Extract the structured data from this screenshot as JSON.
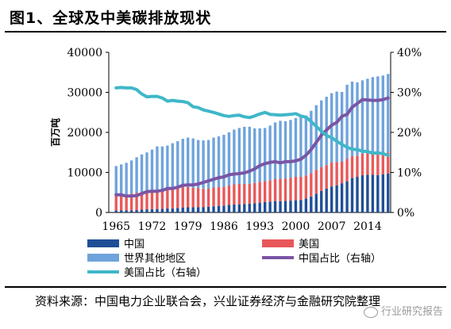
{
  "header": {
    "title": "图1、全球及中美碳排放现状"
  },
  "source": {
    "text": "资料来源：中国电力企业联合会，兴业证券经济与金融研究院整理"
  },
  "watermark": {
    "text": "行业研究报告",
    "icon": "wechat-logo-icon"
  },
  "colors": {
    "china": "#1f4e96",
    "usa": "#e8585a",
    "row": "#6fa3dc",
    "china_share": "#7a55a5",
    "us_share": "#3fb7c9"
  },
  "chart_data": {
    "type": "bar",
    "stacked": true,
    "ylabel": "百万吨",
    "ylim": [
      0,
      40000
    ],
    "y2lim": [
      0,
      0.4
    ],
    "yticks": [
      "0",
      "10000",
      "20000",
      "30000",
      "40000"
    ],
    "y2ticks": [
      "0%",
      "10%",
      "20%",
      "30%",
      "40%"
    ],
    "xticks": [
      "1965",
      "1972",
      "1979",
      "1986",
      "1993",
      "2000",
      "2007",
      "2014"
    ],
    "x": [
      1965,
      1966,
      1967,
      1968,
      1969,
      1970,
      1971,
      1972,
      1973,
      1974,
      1975,
      1976,
      1977,
      1978,
      1979,
      1980,
      1981,
      1982,
      1983,
      1984,
      1985,
      1986,
      1987,
      1988,
      1989,
      1990,
      1991,
      1992,
      1993,
      1994,
      1995,
      1996,
      1997,
      1998,
      1999,
      2000,
      2001,
      2002,
      2003,
      2004,
      2005,
      2006,
      2007,
      2008,
      2009,
      2010,
      2011,
      2012,
      2013,
      2014,
      2015,
      2016,
      2017,
      2018
    ],
    "legend_placement": "bottom",
    "series": [
      {
        "name": "中国",
        "kind": "bar",
        "values": [
          520,
          550,
          510,
          530,
          580,
          690,
          780,
          830,
          870,
          900,
          1000,
          1030,
          1120,
          1260,
          1290,
          1280,
          1290,
          1360,
          1430,
          1560,
          1650,
          1730,
          1880,
          1990,
          2040,
          2100,
          2200,
          2300,
          2450,
          2580,
          2700,
          2850,
          2830,
          2900,
          2950,
          3050,
          3150,
          3450,
          4000,
          4700,
          5400,
          5950,
          6500,
          6800,
          7300,
          7800,
          8600,
          8900,
          9300,
          9400,
          9400,
          9350,
          9500,
          9700
        ]
      },
      {
        "name": "美国",
        "kind": "bar",
        "values": [
          3620,
          3800,
          3960,
          4160,
          4360,
          4440,
          4480,
          4680,
          4860,
          4750,
          4610,
          4850,
          4940,
          5070,
          5060,
          4880,
          4760,
          4550,
          4530,
          4670,
          4700,
          4690,
          4840,
          5040,
          5090,
          5040,
          4960,
          5070,
          5170,
          5260,
          5300,
          5470,
          5560,
          5590,
          5670,
          5860,
          5750,
          5800,
          5850,
          5950,
          5950,
          5880,
          5960,
          5760,
          5370,
          5560,
          5450,
          5230,
          5360,
          5410,
          5270,
          5170,
          5110,
          5280
        ]
      },
      {
        "name": "世界其他地区",
        "kind": "bar",
        "values": [
          7460,
          7650,
          7930,
          8310,
          8860,
          9370,
          9740,
          10190,
          10770,
          10850,
          11090,
          11420,
          11740,
          12070,
          12350,
          12340,
          12050,
          12090,
          12140,
          12470,
          12650,
          12980,
          13280,
          13670,
          13970,
          14260,
          14240,
          13630,
          13380,
          13260,
          13700,
          14180,
          14510,
          14310,
          14480,
          14690,
          14900,
          14950,
          15550,
          16150,
          16650,
          17070,
          17340,
          17640,
          17430,
          18540,
          18650,
          18370,
          18340,
          18590,
          19130,
          19480,
          19590,
          19620
        ]
      },
      {
        "name": "中国占比（右轴）",
        "kind": "line",
        "axis": "right",
        "values": [
          0.044,
          0.044,
          0.041,
          0.041,
          0.042,
          0.047,
          0.052,
          0.053,
          0.053,
          0.055,
          0.06,
          0.06,
          0.063,
          0.068,
          0.069,
          0.069,
          0.071,
          0.075,
          0.079,
          0.083,
          0.087,
          0.089,
          0.094,
          0.096,
          0.097,
          0.099,
          0.103,
          0.109,
          0.117,
          0.122,
          0.125,
          0.127,
          0.124,
          0.127,
          0.127,
          0.129,
          0.133,
          0.143,
          0.157,
          0.175,
          0.193,
          0.206,
          0.218,
          0.225,
          0.24,
          0.245,
          0.263,
          0.272,
          0.282,
          0.281,
          0.28,
          0.28,
          0.282,
          0.286
        ]
      },
      {
        "name": "美国占比（右轴）",
        "kind": "line",
        "axis": "right",
        "values": [
          0.311,
          0.312,
          0.311,
          0.311,
          0.307,
          0.296,
          0.289,
          0.29,
          0.29,
          0.286,
          0.278,
          0.28,
          0.278,
          0.277,
          0.274,
          0.264,
          0.262,
          0.256,
          0.253,
          0.25,
          0.246,
          0.242,
          0.24,
          0.242,
          0.243,
          0.239,
          0.237,
          0.241,
          0.246,
          0.25,
          0.245,
          0.244,
          0.243,
          0.244,
          0.245,
          0.247,
          0.241,
          0.238,
          0.227,
          0.215,
          0.203,
          0.192,
          0.187,
          0.178,
          0.17,
          0.163,
          0.158,
          0.157,
          0.153,
          0.152,
          0.148,
          0.149,
          0.147,
          0.143
        ]
      }
    ]
  }
}
